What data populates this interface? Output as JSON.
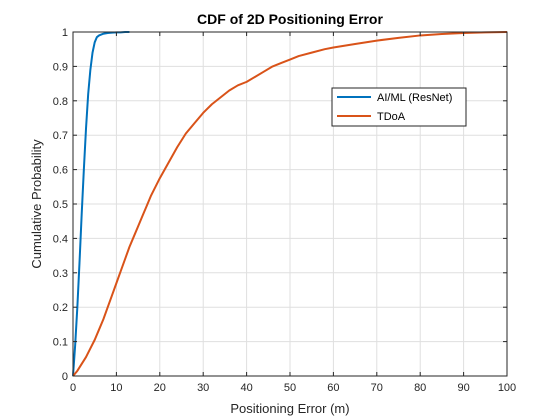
{
  "chart_data": {
    "type": "line",
    "title": "CDF of 2D Positioning Error",
    "xlabel": "Positioning Error (m)",
    "ylabel": "Cumulative Probability",
    "xlim": [
      0,
      100
    ],
    "ylim": [
      0,
      1
    ],
    "xticks": [
      0,
      10,
      20,
      30,
      40,
      50,
      60,
      70,
      80,
      90,
      100
    ],
    "yticks": [
      0,
      0.1,
      0.2,
      0.3,
      0.4,
      0.5,
      0.6,
      0.7,
      0.8,
      0.9,
      1
    ],
    "ytick_labels": [
      "0",
      "0.1",
      "0.2",
      "0.3",
      "0.4",
      "0.5",
      "0.6",
      "0.7",
      "0.8",
      "0.9",
      "1"
    ],
    "grid": true,
    "legend_position": "upper-right",
    "series": [
      {
        "name": "AI/ML (ResNet)",
        "color": "#0072BD",
        "x": [
          0,
          0.5,
          1,
          1.5,
          2,
          2.5,
          3,
          3.5,
          4,
          4.5,
          5,
          5.5,
          6,
          7,
          8,
          9,
          10,
          11,
          12,
          13
        ],
        "y": [
          0,
          0.09,
          0.2,
          0.33,
          0.47,
          0.6,
          0.72,
          0.82,
          0.89,
          0.94,
          0.97,
          0.985,
          0.99,
          0.995,
          0.997,
          0.998,
          0.999,
          0.999,
          1,
          1
        ]
      },
      {
        "name": "TDoA",
        "color": "#D95319",
        "x": [
          0,
          1,
          2,
          3,
          4,
          5,
          6,
          7,
          8,
          9,
          10,
          11,
          12,
          13,
          14,
          15,
          16,
          17,
          18,
          19,
          20,
          22,
          24,
          26,
          28,
          30,
          32,
          34,
          36,
          38,
          40,
          42,
          44,
          46,
          48,
          50,
          52,
          55,
          58,
          60,
          65,
          70,
          75,
          80,
          85,
          90,
          95,
          100
        ],
        "y": [
          0,
          0.015,
          0.035,
          0.055,
          0.08,
          0.105,
          0.135,
          0.165,
          0.2,
          0.235,
          0.27,
          0.305,
          0.34,
          0.375,
          0.405,
          0.435,
          0.465,
          0.495,
          0.525,
          0.55,
          0.575,
          0.62,
          0.665,
          0.705,
          0.735,
          0.765,
          0.79,
          0.81,
          0.83,
          0.845,
          0.855,
          0.87,
          0.885,
          0.9,
          0.91,
          0.92,
          0.93,
          0.94,
          0.95,
          0.955,
          0.965,
          0.975,
          0.983,
          0.99,
          0.994,
          0.997,
          0.999,
          1
        ]
      }
    ]
  }
}
